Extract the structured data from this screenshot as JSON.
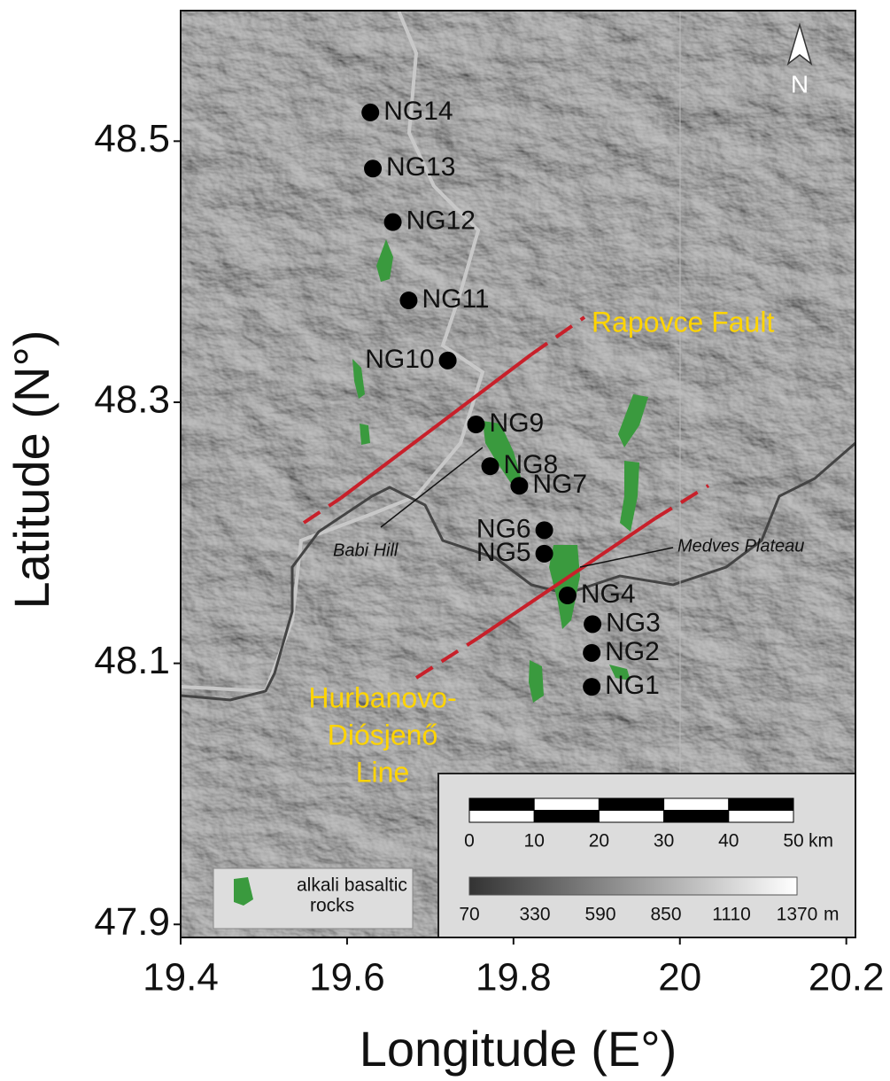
{
  "chart_data": {
    "type": "scatter",
    "xlabel": "Longitude (E°)",
    "ylabel": "Latitude (N°)",
    "xlim": [
      19.4,
      20.211
    ],
    "ylim": [
      47.89,
      48.6
    ],
    "xticks": [
      19.4,
      19.6,
      19.8,
      20,
      20.2
    ],
    "yticks": [
      48.5,
      48.3,
      48.1,
      47.9
    ],
    "color": "#000000",
    "point_labels": [
      "NG1",
      "NG2",
      "NG3",
      "NG4",
      "NG5",
      "NG6",
      "NG7",
      "NG8",
      "NG9",
      "NG10",
      "NG11",
      "NG12",
      "NG13",
      "NG14"
    ],
    "x": [
      19.894,
      19.894,
      19.895,
      19.865,
      19.837,
      19.837,
      19.807,
      19.772,
      19.755,
      19.721,
      19.674,
      19.655,
      19.631,
      19.628
    ],
    "y": [
      48.082,
      48.108,
      48.13,
      48.152,
      48.184,
      48.202,
      48.236,
      48.251,
      48.283,
      48.332,
      48.378,
      48.438,
      48.479,
      48.522
    ]
  },
  "annotations": {
    "rapovce": "Rapovce Fault",
    "hurbanovo": [
      "Hurbanovo-",
      "Diósjenő",
      "Line"
    ],
    "babi": "Babi Hill",
    "medves": "Medves Plateau"
  },
  "north": "N",
  "legend": [
    "alkali basaltic",
    "rocks"
  ],
  "scale_bar": {
    "labels": [
      0,
      10,
      20,
      30,
      40,
      50
    ],
    "unit": "km"
  },
  "elevation": {
    "labels": [
      70,
      330,
      590,
      850,
      1110,
      1370
    ],
    "unit": "m"
  }
}
